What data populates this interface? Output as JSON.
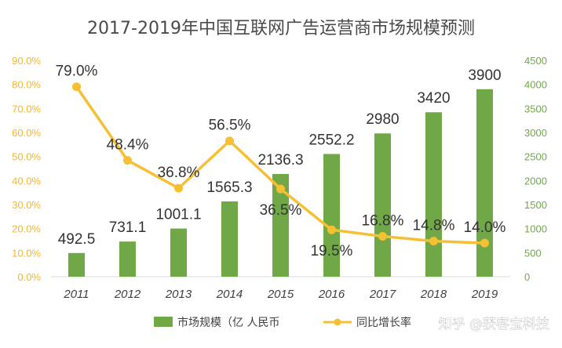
{
  "chart_data": {
    "type": "bar",
    "title": "2017-2019年中国互联网广告运营商市场规模预测",
    "categories": [
      "2011",
      "2012",
      "2013",
      "2014",
      "2015",
      "2016",
      "2017",
      "2018",
      "2019"
    ],
    "series": [
      {
        "name": "市场规模（亿 人民币",
        "type": "bar",
        "axis": "right",
        "values": [
          492.5,
          731.1,
          1001.1,
          1565.3,
          2136.3,
          2552.2,
          2980,
          3420,
          3900
        ],
        "labels": [
          "492.5",
          "731.1",
          "1001.1",
          "1565.3",
          "2136.3",
          "2552.2",
          "2980",
          "3420",
          "3900"
        ],
        "color": "#70a848"
      },
      {
        "name": "同比增长率",
        "type": "line",
        "axis": "left",
        "values": [
          79.0,
          48.4,
          36.8,
          56.5,
          36.5,
          19.5,
          16.8,
          14.8,
          14.0
        ],
        "labels": [
          "79.0%",
          "48.4%",
          "36.8%",
          "56.5%",
          "36.5%",
          "19.5%",
          "16.8%",
          "14.8%",
          "14.0%"
        ],
        "color": "#f5c034"
      }
    ],
    "left_axis": {
      "ylim": [
        0,
        90
      ],
      "ticks": [
        "0.0%",
        "10.0%",
        "20.0%",
        "30.0%",
        "40.0%",
        "50.0%",
        "60.0%",
        "70.0%",
        "80.0%",
        "90.0%"
      ],
      "color": "#f0b731"
    },
    "right_axis": {
      "ylim": [
        0,
        4500
      ],
      "ticks": [
        "0",
        "500",
        "1000",
        "1500",
        "2000",
        "2500",
        "3000",
        "3500",
        "4000",
        "4500"
      ],
      "color": "#70a848"
    },
    "grid": false,
    "legend": "bottom"
  },
  "watermark": "知乎 @获客宝科技"
}
